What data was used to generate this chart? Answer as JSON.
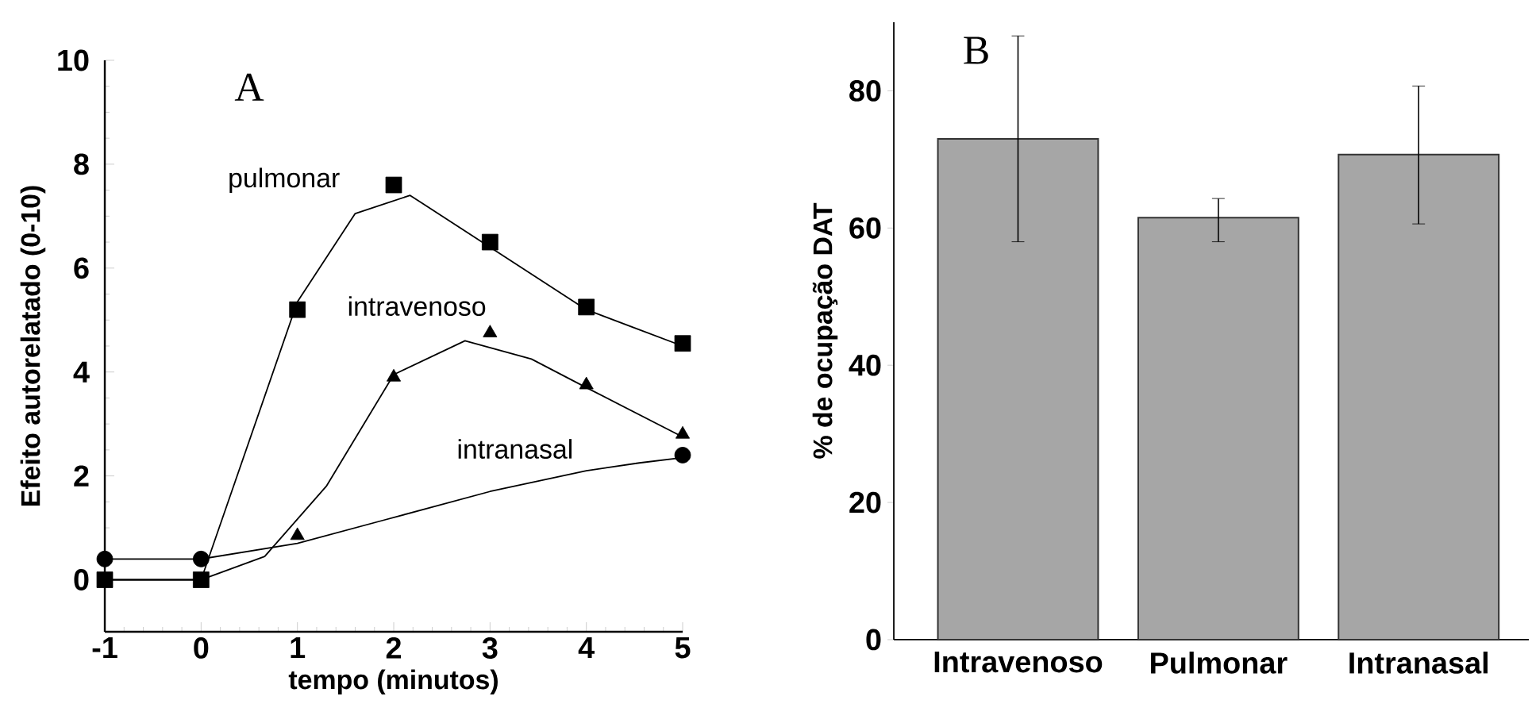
{
  "chart_data": [
    {
      "type": "line",
      "title": "A",
      "xlabel": "tempo (minutos)",
      "ylabel": "Efeito autorelatado (0-10)",
      "xlim": [
        -1,
        5
      ],
      "ylim": [
        -1,
        10
      ],
      "xticks": [
        -1,
        0,
        1,
        2,
        3,
        4,
        5
      ],
      "yticks": [
        0,
        2,
        4,
        6,
        8,
        10
      ],
      "series": [
        {
          "type": "scatter",
          "marker": "square",
          "color": "#000000",
          "x": [
            -1,
            0,
            1,
            2,
            3,
            4,
            5
          ],
          "values": [
            0,
            0,
            5.2,
            7.6,
            6.5,
            5.25,
            4.55
          ]
        },
        {
          "type": "scatter",
          "marker": "triangle",
          "color": "#000000",
          "x": [
            1,
            2,
            3,
            4,
            5
          ],
          "values": [
            0.85,
            3.9,
            4.75,
            3.75,
            2.8
          ]
        },
        {
          "type": "scatter",
          "marker": "circle",
          "color": "#000000",
          "x": [
            -1,
            0,
            5
          ],
          "values": [
            0.4,
            0.4,
            2.4
          ]
        },
        {
          "type": "line",
          "color": "#000000",
          "x": [
            -1,
            0,
            1.0,
            1.6,
            2.17,
            3.0,
            4.0,
            4.5,
            5
          ],
          "values": [
            0,
            0,
            5.35,
            7.05,
            7.4,
            6.4,
            5.2,
            4.85,
            4.5
          ]
        },
        {
          "type": "line",
          "color": "#000000",
          "x": [
            -1,
            0,
            0.66,
            1.3,
            2.0,
            2.74,
            3.43,
            4.0,
            5
          ],
          "values": [
            0,
            0,
            0.45,
            1.8,
            3.95,
            4.6,
            4.25,
            3.7,
            2.75
          ]
        },
        {
          "type": "line",
          "color": "#000000",
          "x": [
            -1,
            0,
            1.0,
            1.9,
            3.0,
            4.0,
            4.55,
            5
          ],
          "values": [
            0.4,
            0.4,
            0.7,
            1.15,
            1.7,
            2.1,
            2.25,
            2.35
          ]
        }
      ],
      "annotations": [
        "pulmonar",
        "intravenoso",
        "intranasal"
      ]
    },
    {
      "type": "bar",
      "title": "B",
      "ylabel": "% de ocupação DAT",
      "categories": [
        "Intravenoso",
        "Pulmonar",
        "Intranasal"
      ],
      "values": [
        73,
        61.5,
        70.7
      ],
      "errors": [
        [
          58,
          88
        ],
        [
          58,
          64.3
        ],
        [
          60.6,
          80.7
        ]
      ],
      "color": "#a6a6a6",
      "ylim": [
        0,
        90
      ],
      "yticks": [
        0,
        20,
        40,
        60,
        80
      ]
    }
  ]
}
